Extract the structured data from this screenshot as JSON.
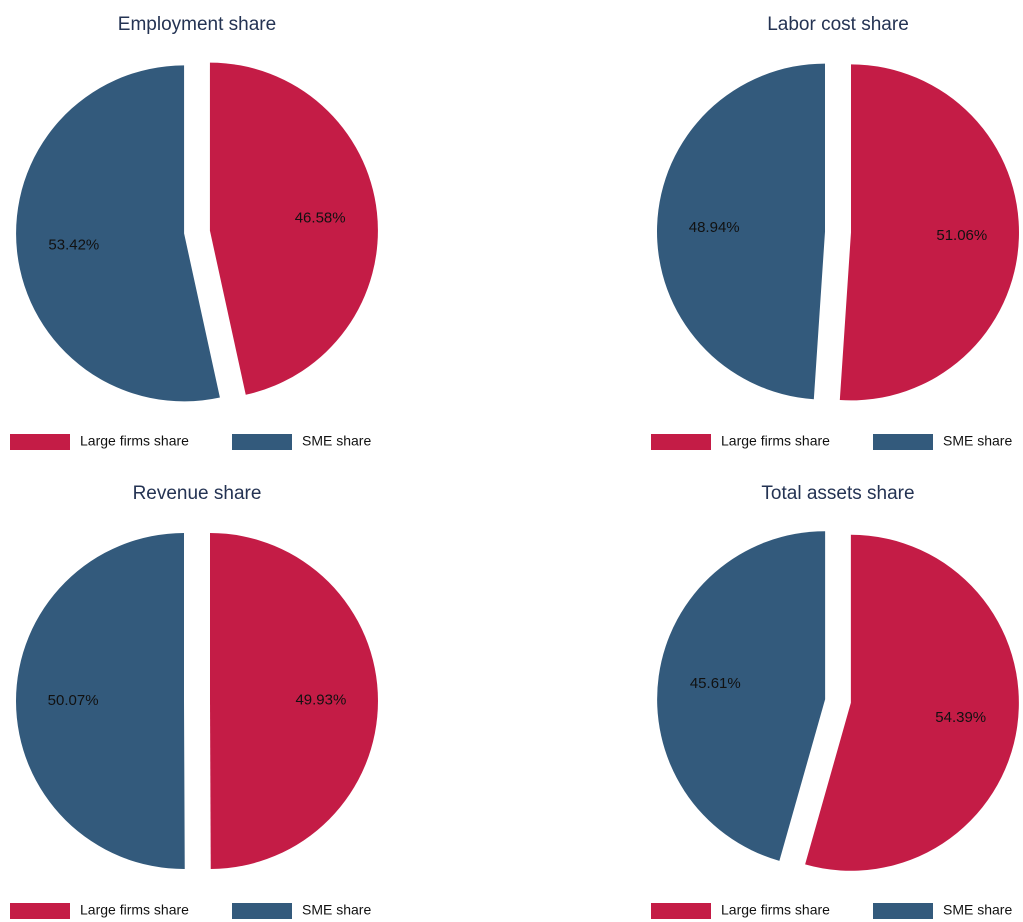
{
  "chart_data": [
    {
      "type": "pie",
      "title": "Employment share",
      "categories": [
        "Large firms share",
        "SME share"
      ],
      "values": [
        46.58,
        53.42
      ],
      "value_labels": [
        "46.58%",
        "53.42%"
      ],
      "colors": [
        "#c41c46",
        "#335a7c"
      ]
    },
    {
      "type": "pie",
      "title": "Labor cost share",
      "categories": [
        "Large firms share",
        "SME share"
      ],
      "values": [
        51.06,
        48.94
      ],
      "value_labels": [
        "51.06%",
        "48.94%"
      ],
      "colors": [
        "#c41c46",
        "#335a7c"
      ]
    },
    {
      "type": "pie",
      "title": "Revenue share",
      "categories": [
        "Large firms share",
        "SME share"
      ],
      "values": [
        49.93,
        50.07
      ],
      "value_labels": [
        "49.93%",
        "50.07%"
      ],
      "colors": [
        "#c41c46",
        "#335a7c"
      ]
    },
    {
      "type": "pie",
      "title": "Total assets share",
      "categories": [
        "Large firms share",
        "SME share"
      ],
      "values": [
        54.39,
        45.61
      ],
      "value_labels": [
        "54.39%",
        "45.61%"
      ],
      "colors": [
        "#c41c46",
        "#335a7c"
      ]
    }
  ]
}
